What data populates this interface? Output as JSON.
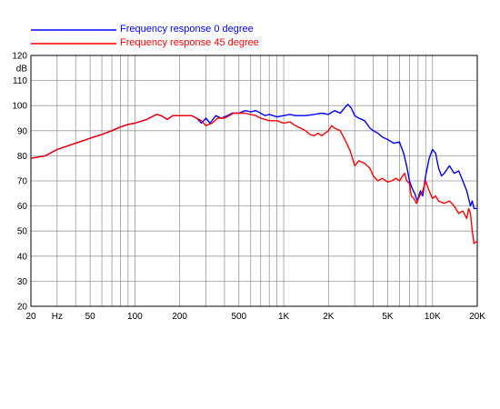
{
  "chart_data": {
    "type": "line",
    "xscale": "log",
    "xlim": [
      20,
      20000
    ],
    "ylim": [
      20,
      120
    ],
    "ylabel": "dB",
    "grid": true,
    "legend_position": "top",
    "x_ticks": [
      {
        "value": 20,
        "label": "20"
      },
      {
        "value": 30,
        "label": "Hz"
      },
      {
        "value": 50,
        "label": "50"
      },
      {
        "value": 100,
        "label": "100"
      },
      {
        "value": 200,
        "label": "200"
      },
      {
        "value": 500,
        "label": "500"
      },
      {
        "value": 1000,
        "label": "1K"
      },
      {
        "value": 2000,
        "label": "2K"
      },
      {
        "value": 5000,
        "label": "5K"
      },
      {
        "value": 10000,
        "label": "10K"
      },
      {
        "value": 20000,
        "label": "20K"
      }
    ],
    "y_ticks": [
      20,
      30,
      40,
      50,
      60,
      70,
      80,
      90,
      100,
      110,
      120
    ],
    "series": [
      {
        "name": "Frequency response 0 degree",
        "color": "#0000ff",
        "points": [
          [
            20,
            79
          ],
          [
            25,
            80
          ],
          [
            30,
            82.5
          ],
          [
            40,
            85
          ],
          [
            50,
            87
          ],
          [
            60,
            88.5
          ],
          [
            70,
            90
          ],
          [
            80,
            91.5
          ],
          [
            90,
            92.5
          ],
          [
            100,
            93
          ],
          [
            120,
            94.5
          ],
          [
            140,
            96.5
          ],
          [
            150,
            96
          ],
          [
            165,
            94.5
          ],
          [
            180,
            96
          ],
          [
            200,
            96
          ],
          [
            240,
            96
          ],
          [
            260,
            95
          ],
          [
            280,
            93
          ],
          [
            300,
            95
          ],
          [
            320,
            93
          ],
          [
            350,
            96
          ],
          [
            380,
            95
          ],
          [
            420,
            96
          ],
          [
            450,
            97
          ],
          [
            500,
            97
          ],
          [
            550,
            98
          ],
          [
            600,
            97.5
          ],
          [
            650,
            98
          ],
          [
            700,
            97
          ],
          [
            750,
            96
          ],
          [
            800,
            96.5
          ],
          [
            900,
            95.5
          ],
          [
            1000,
            96
          ],
          [
            1100,
            96.5
          ],
          [
            1200,
            96
          ],
          [
            1400,
            96
          ],
          [
            1600,
            96.5
          ],
          [
            1800,
            97
          ],
          [
            2000,
            96.5
          ],
          [
            2200,
            98
          ],
          [
            2400,
            97
          ],
          [
            2600,
            99.5
          ],
          [
            2700,
            100.5
          ],
          [
            2850,
            99
          ],
          [
            3000,
            96
          ],
          [
            3200,
            95
          ],
          [
            3500,
            94
          ],
          [
            3800,
            91
          ],
          [
            4000,
            90
          ],
          [
            4300,
            89
          ],
          [
            4600,
            87.5
          ],
          [
            5000,
            86.5
          ],
          [
            5500,
            85
          ],
          [
            6000,
            85.5
          ],
          [
            6400,
            81
          ],
          [
            6700,
            76
          ],
          [
            7000,
            70
          ],
          [
            7300,
            67
          ],
          [
            7600,
            65
          ],
          [
            7900,
            62
          ],
          [
            8300,
            66
          ],
          [
            8600,
            64
          ],
          [
            9000,
            72
          ],
          [
            9500,
            79
          ],
          [
            10000,
            82.5
          ],
          [
            10500,
            81
          ],
          [
            11000,
            75
          ],
          [
            11500,
            72
          ],
          [
            12000,
            73
          ],
          [
            13000,
            76
          ],
          [
            14000,
            73
          ],
          [
            15000,
            74
          ],
          [
            16000,
            70
          ],
          [
            17000,
            66
          ],
          [
            18000,
            60
          ],
          [
            18500,
            62
          ],
          [
            19000,
            59
          ],
          [
            20000,
            59
          ]
        ]
      },
      {
        "name": "Frequency response 45 degree",
        "color": "#ff0000",
        "points": [
          [
            20,
            79
          ],
          [
            25,
            80
          ],
          [
            30,
            82.5
          ],
          [
            40,
            85
          ],
          [
            50,
            87
          ],
          [
            60,
            88.5
          ],
          [
            70,
            90
          ],
          [
            80,
            91.5
          ],
          [
            90,
            92.5
          ],
          [
            100,
            93
          ],
          [
            120,
            94.5
          ],
          [
            140,
            96.5
          ],
          [
            150,
            96
          ],
          [
            165,
            94.5
          ],
          [
            180,
            96
          ],
          [
            200,
            96
          ],
          [
            240,
            96
          ],
          [
            280,
            94
          ],
          [
            300,
            92
          ],
          [
            330,
            93
          ],
          [
            360,
            95
          ],
          [
            400,
            95
          ],
          [
            430,
            96
          ],
          [
            460,
            97
          ],
          [
            500,
            97
          ],
          [
            550,
            97
          ],
          [
            600,
            96.5
          ],
          [
            650,
            96
          ],
          [
            700,
            95
          ],
          [
            750,
            94.5
          ],
          [
            800,
            94
          ],
          [
            900,
            94
          ],
          [
            1000,
            93
          ],
          [
            1100,
            93.5
          ],
          [
            1200,
            92
          ],
          [
            1300,
            91
          ],
          [
            1400,
            90
          ],
          [
            1500,
            88.5
          ],
          [
            1600,
            88
          ],
          [
            1700,
            89
          ],
          [
            1800,
            88
          ],
          [
            2000,
            90
          ],
          [
            2100,
            92
          ],
          [
            2200,
            91
          ],
          [
            2400,
            90
          ],
          [
            2600,
            86
          ],
          [
            2800,
            82
          ],
          [
            3000,
            76
          ],
          [
            3200,
            78
          ],
          [
            3500,
            77
          ],
          [
            3800,
            75
          ],
          [
            4000,
            72
          ],
          [
            4300,
            70
          ],
          [
            4600,
            71
          ],
          [
            5000,
            69.5
          ],
          [
            5300,
            70
          ],
          [
            5700,
            71
          ],
          [
            6000,
            70
          ],
          [
            6300,
            72
          ],
          [
            6500,
            73
          ],
          [
            6700,
            70
          ],
          [
            7000,
            69
          ],
          [
            7200,
            64
          ],
          [
            7500,
            63
          ],
          [
            7800,
            61
          ],
          [
            8200,
            64
          ],
          [
            8600,
            66
          ],
          [
            9000,
            70
          ],
          [
            9500,
            66
          ],
          [
            10000,
            63
          ],
          [
            10500,
            64
          ],
          [
            11000,
            62
          ],
          [
            12000,
            61
          ],
          [
            13000,
            62
          ],
          [
            14000,
            60
          ],
          [
            15000,
            57
          ],
          [
            16000,
            58
          ],
          [
            17000,
            55
          ],
          [
            17500,
            59
          ],
          [
            18000,
            57
          ],
          [
            18500,
            50
          ],
          [
            19000,
            45
          ],
          [
            20000,
            46
          ]
        ]
      }
    ]
  }
}
